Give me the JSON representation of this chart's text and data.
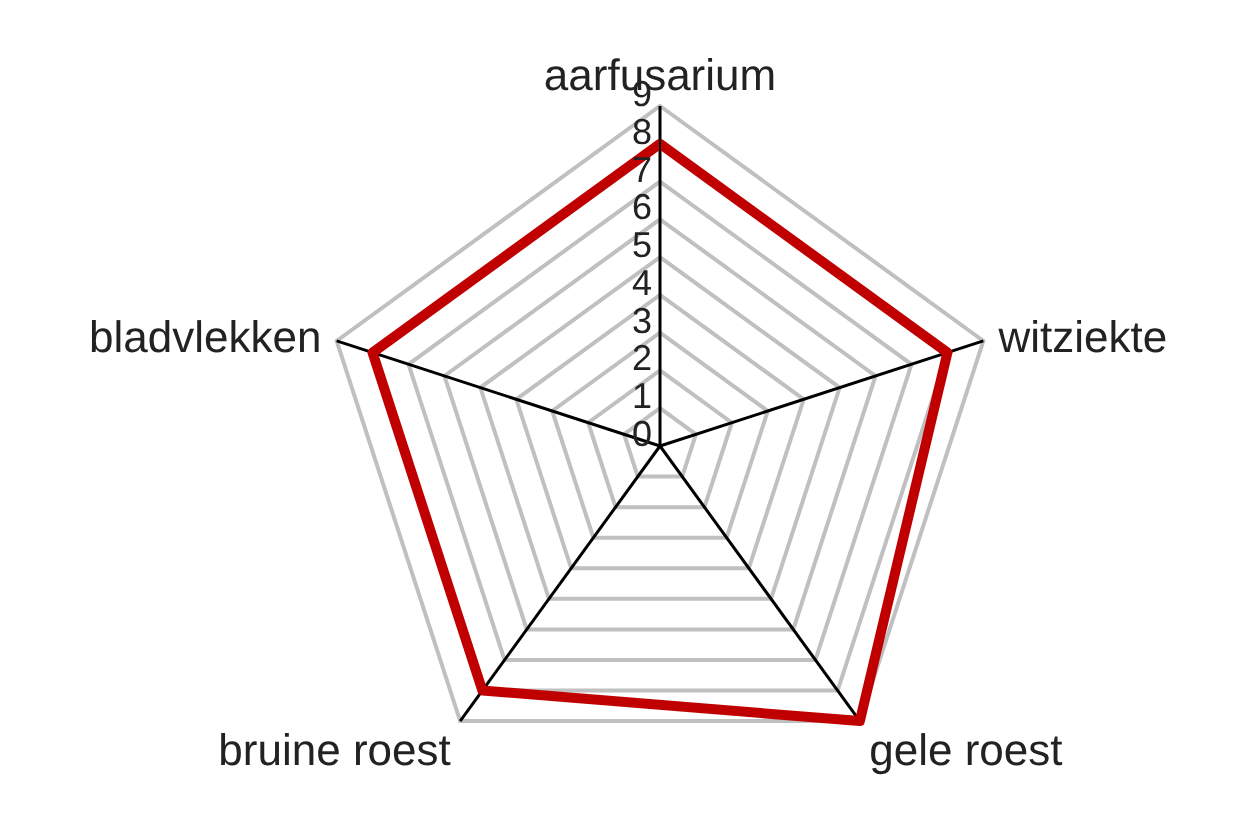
{
  "chart_data": {
    "type": "radar",
    "categories": [
      "aarfusarium",
      "witziekte",
      "gele roest",
      "bruine roest",
      "bladvlekken"
    ],
    "series": [
      {
        "color": "#c00000",
        "values": [
          8,
          8,
          9,
          8,
          8
        ]
      }
    ],
    "ylim": [
      0,
      9
    ],
    "yticks": [
      0,
      1,
      2,
      3,
      4,
      5,
      6,
      7,
      8,
      9
    ],
    "grid": true,
    "legend": false,
    "marker": "none"
  }
}
